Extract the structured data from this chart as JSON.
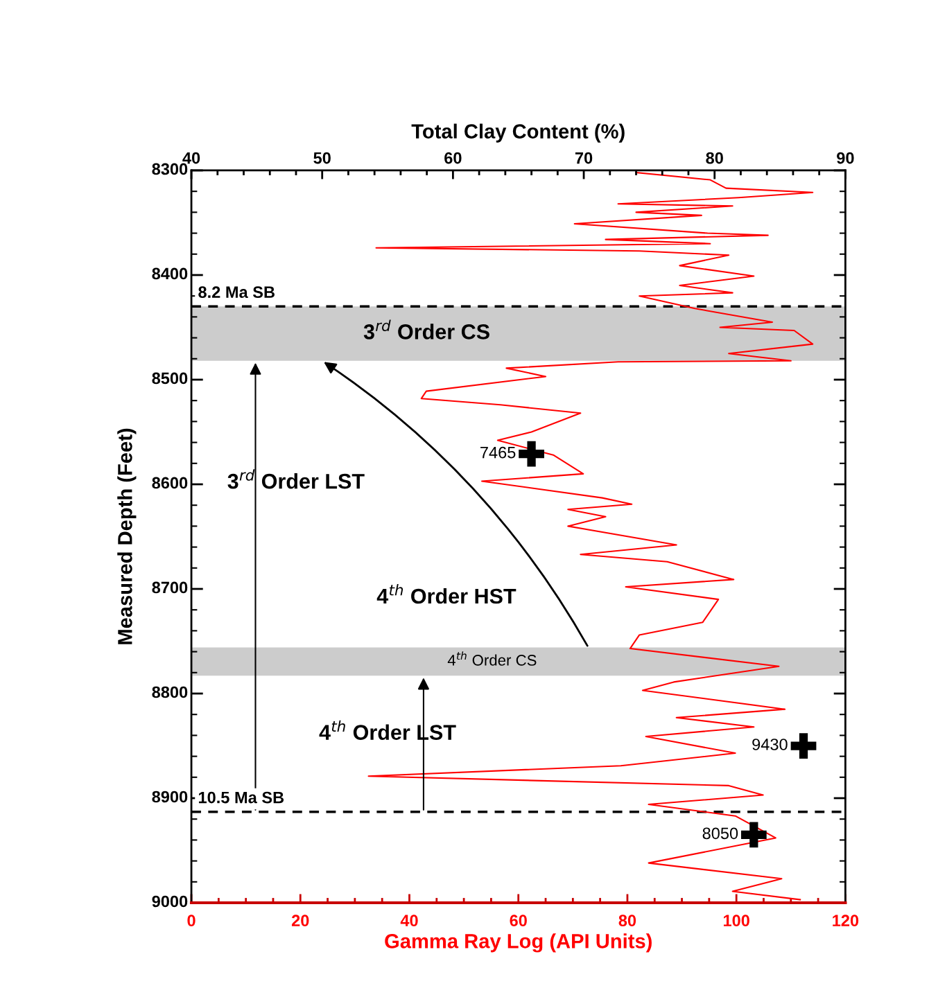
{
  "chart_data": {
    "type": "line",
    "xlabel": "Gamma Ray Log (API Units)",
    "x2label": "Total Clay Content (%)",
    "ylabel": "Measured Depth (Feet)",
    "xlim": [
      0,
      120
    ],
    "xticks": [
      0,
      20,
      40,
      60,
      80,
      100,
      120
    ],
    "x2lim": [
      40,
      90
    ],
    "x2ticks": [
      40,
      50,
      60,
      70,
      80,
      90
    ],
    "ylim": [
      9000,
      8300
    ],
    "yticks": [
      8300,
      8400,
      8500,
      8600,
      8700,
      8800,
      8900,
      9000
    ],
    "grid": false,
    "series": [
      {
        "color": "#ff0000",
        "marker": "none",
        "line_style": "solid",
        "x": [
          81.6,
          95.2,
          98.1,
          114.0,
          100.4,
          78.3,
          99.3,
          81.6,
          93.6,
          70.3,
          94.7,
          105.8,
          76.0,
          95.2,
          33.9,
          82.2,
          98.6,
          89.6,
          103.2,
          89.6,
          99.3,
          82.2,
          92.4,
          106.6,
          97.0,
          110.6,
          114.0,
          98.6,
          110.0,
          78.3,
          57.8,
          65.0,
          43.1,
          42.2,
          56.7,
          71.4,
          62.4,
          56.2,
          66.4,
          71.9,
          53.3,
          75.4,
          80.8,
          69.1,
          76.0,
          69.1,
          89.0,
          71.4,
          87.3,
          99.5,
          79.7,
          96.7,
          93.8,
          82.2,
          80.5,
          107.8,
          88.5,
          82.8,
          108.9,
          89.0,
          103.2,
          83.4,
          99.8,
          78.8,
          32.5,
          98.6,
          104.9,
          83.9,
          99.8,
          107.2,
          83.9,
          108.3,
          99.3,
          111.7
        ],
        "values": [
          8302,
          8309,
          8317,
          8321,
          8326,
          8332,
          8334,
          8340,
          8343,
          8351,
          8360,
          8362,
          8366,
          8370,
          8374,
          8377,
          8381,
          8391,
          8401,
          8410,
          8417,
          8420,
          8432,
          8445,
          8450,
          8453,
          8466,
          8475,
          8482,
          8483,
          8489,
          8497,
          8511,
          8518,
          8524,
          8532,
          8550,
          8558,
          8572,
          8590,
          8597,
          8613,
          8619,
          8624,
          8631,
          8640,
          8658,
          8667,
          8674,
          8691,
          8698,
          8710,
          8732,
          8744,
          8757,
          8774,
          8789,
          8797,
          8815,
          8823,
          8832,
          8841,
          8857,
          8869,
          8879,
          8888,
          8897,
          8906,
          8917,
          8938,
          8962,
          8977,
          8989,
          8997
        ]
      },
      {
        "type": "scatter",
        "axis": "x2",
        "color": "#000000",
        "marker": "cross",
        "x": [
          66.0,
          86.8,
          83.0
        ],
        "values": [
          8571,
          8850,
          8935
        ]
      }
    ],
    "ref_lines": [
      {
        "axis": "y",
        "value": 8430,
        "label": "8.2 Ma SB",
        "color": "#000000",
        "line_style": "dashed"
      },
      {
        "axis": "y",
        "value": 8913,
        "label": "10.5 Ma SB",
        "color": "#000000",
        "line_style": "dashed"
      }
    ],
    "bands": [
      {
        "axis": "y",
        "from": 8430,
        "to": 8482,
        "label": "3$^{rd}$ Order CS",
        "color": "#cccccc"
      },
      {
        "axis": "y",
        "from": 8756,
        "to": 8783,
        "label": "4$^{th}$ Order CS",
        "color": "#cccccc"
      }
    ],
    "annotations": [
      "3$^{rd}$ Order LST",
      "4$^{th}$ Order HST",
      "4$^{th}$ Order LST",
      {
        "text": "7465",
        "x": 62.4,
        "y": 8571
      },
      {
        "text": "9430",
        "x": 112.3,
        "y": 8850
      },
      {
        "text": "8050",
        "x": 103.2,
        "y": 8935
      }
    ]
  }
}
